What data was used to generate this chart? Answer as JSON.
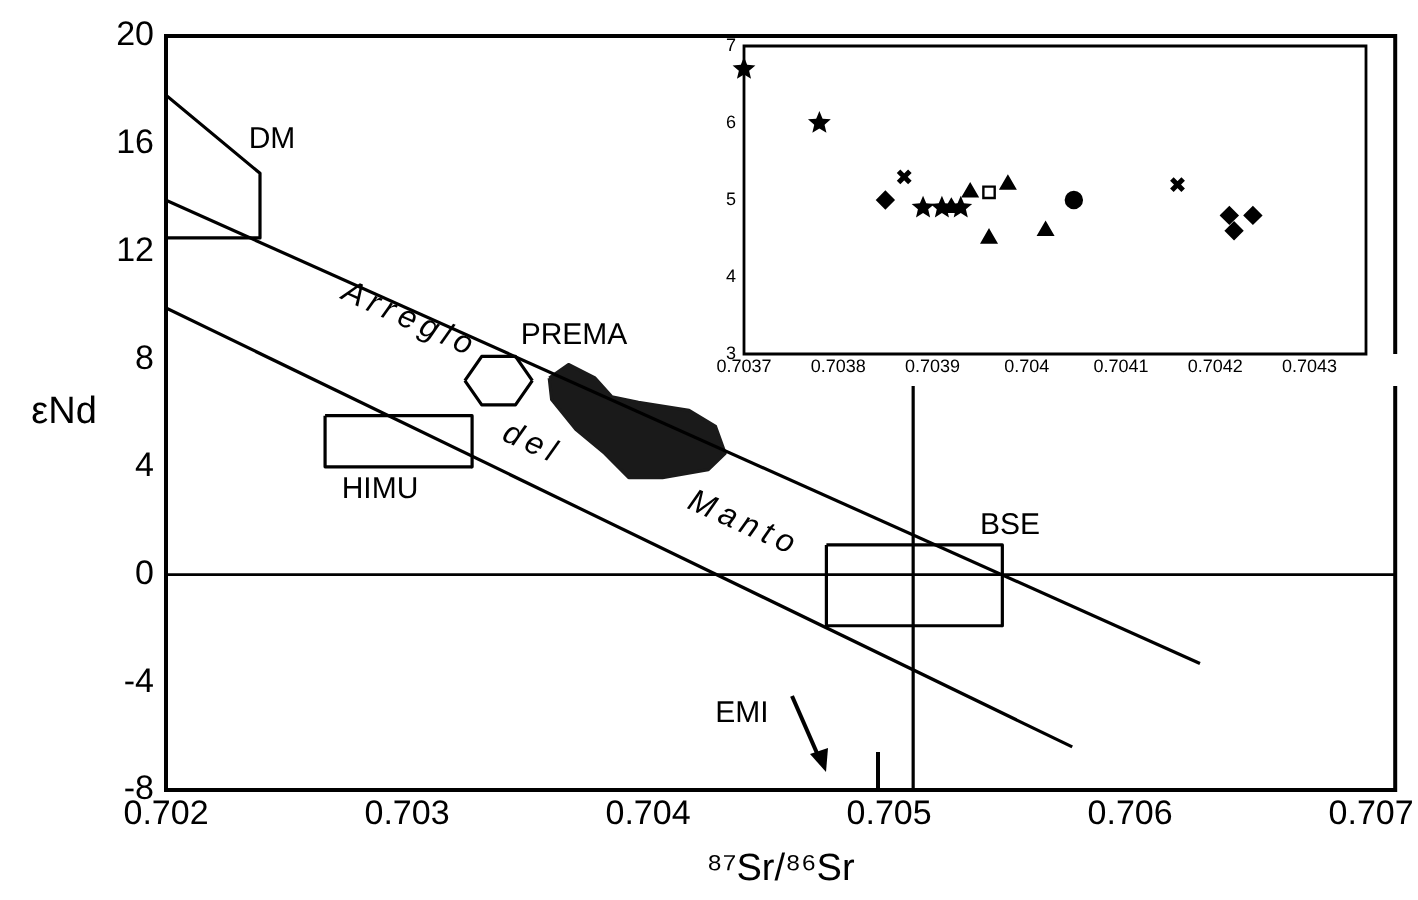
{
  "chart_data": [
    {
      "type": "scatter",
      "xlabel": "⁸⁷Sr/⁸⁶Sr",
      "ylabel": "εNd",
      "xlim": [
        0.702,
        0.7071
      ],
      "xticks": [
        0.702,
        0.703,
        0.704,
        0.705,
        0.706,
        0.707
      ],
      "ylim": [
        -8,
        20
      ],
      "yticks": [
        -8,
        -4,
        0,
        4,
        8,
        12,
        16,
        20
      ],
      "grid": false,
      "legend": false,
      "series": [
        {
          "type": "line",
          "color": "#000000",
          "x": [
            0.702,
            0.70629
          ],
          "values": [
            13.9,
            -3.3
          ]
        },
        {
          "type": "line",
          "color": "#000000",
          "x": [
            0.702,
            0.70576
          ],
          "values": [
            9.9,
            -6.4
          ]
        },
        {
          "type": "line",
          "color": "#000000",
          "x": [
            0.702,
            0.70239,
            0.70239,
            0.702
          ],
          "values": [
            17.8,
            14.9,
            12.5,
            12.5
          ]
        },
        {
          "type": "line",
          "color": "#000000",
          "x": [
            0.70266,
            0.70327,
            0.70327
          ],
          "values": [
            5.9,
            5.9,
            4.0
          ]
        },
        {
          "type": "line",
          "color": "#000000",
          "x": [
            0.70327,
            0.70266,
            0.70266
          ],
          "values": [
            4.0,
            4.0,
            5.9
          ]
        },
        {
          "type": "line",
          "color": "#000000",
          "x": [
            0.70324,
            0.70331,
            0.70345,
            0.70352
          ],
          "values": [
            7.2,
            8.1,
            8.1,
            7.2
          ]
        },
        {
          "type": "line",
          "color": "#000000",
          "x": [
            0.70352,
            0.70345,
            0.70331,
            0.70324
          ],
          "values": [
            7.2,
            6.3,
            6.3,
            7.2
          ]
        },
        {
          "type": "line",
          "color": "#000000",
          "x": [
            0.70474,
            0.70547,
            0.70547
          ],
          "values": [
            1.1,
            1.1,
            -1.9
          ]
        },
        {
          "type": "line",
          "color": "#000000",
          "x": [
            0.70547,
            0.70474,
            0.70474
          ],
          "values": [
            -1.9,
            -1.9,
            1.1
          ]
        },
        {
          "type": "line",
          "color": "#000000",
          "x": [
            0.7051,
            0.7051
          ],
          "values": [
            -8,
            8.2
          ]
        },
        {
          "type": "area",
          "color": "#1a1a1a",
          "x": [
            0.70359,
            0.70367,
            0.70378,
            0.70385,
            0.70396,
            0.70417,
            0.70428,
            0.70432,
            0.70425,
            0.70406,
            0.70392,
            0.70382,
            0.7037,
            0.7036,
            0.70359
          ],
          "values": [
            7.3,
            7.8,
            7.3,
            6.6,
            6.4,
            6.1,
            5.5,
            4.5,
            3.9,
            3.6,
            3.6,
            4.5,
            5.4,
            6.5,
            7.3
          ]
        }
      ],
      "ref_lines": [
        {
          "axis": "y",
          "value": 0,
          "color": "#000000"
        }
      ],
      "annotations": [
        "DM",
        "PREMA",
        "HIMU",
        "BSE",
        "EMI",
        "Arreglo del Manto"
      ]
    },
    {
      "type": "scatter",
      "xlim": [
        0.7037,
        0.70436
      ],
      "xticks": [
        0.7037,
        0.7038,
        0.7039,
        0.704,
        0.7041,
        0.7042,
        0.7043
      ],
      "ylim": [
        3,
        7
      ],
      "yticks": [
        3,
        4,
        5,
        6,
        7
      ],
      "grid": false,
      "legend": false,
      "series": [
        {
          "color": "#000000",
          "marker": "star",
          "x": [
            0.7037,
            0.70378,
            0.70389,
            0.70391,
            0.70393
          ],
          "values": [
            6.7,
            6.0,
            4.9,
            4.9,
            4.9
          ]
        },
        {
          "color": "#000000",
          "marker": "cross",
          "x": [
            0.70387,
            0.70416
          ],
          "values": [
            5.3,
            5.2
          ]
        },
        {
          "color": "#000000",
          "marker": "diamond",
          "x": [
            0.70385,
            0.704215,
            0.70424,
            0.70422
          ],
          "values": [
            5.0,
            4.8,
            4.8,
            4.6
          ]
        },
        {
          "color": "#000000",
          "marker": "triangle",
          "x": [
            0.70392,
            0.70394,
            0.70398,
            0.70402,
            0.70396
          ],
          "values": [
            4.9,
            5.1,
            5.2,
            4.6,
            4.5
          ]
        },
        {
          "color": "#000000",
          "marker": "square",
          "x": [
            0.70396
          ],
          "values": [
            5.1
          ]
        },
        {
          "color": "#000000",
          "marker": "circle",
          "x": [
            0.70405
          ],
          "values": [
            5.0
          ]
        }
      ]
    }
  ]
}
